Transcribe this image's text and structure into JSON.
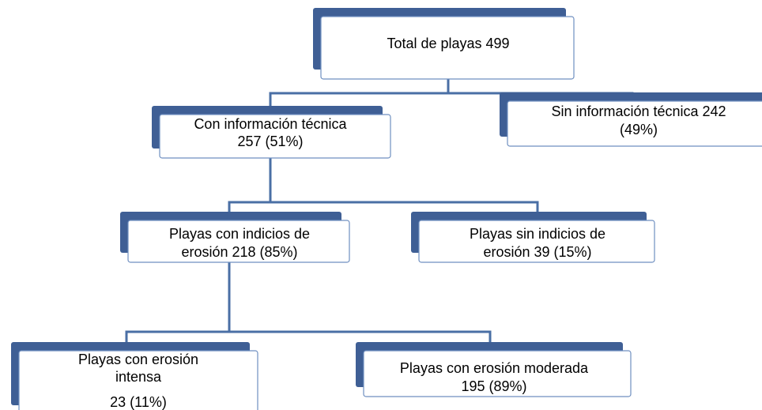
{
  "nodes": [
    {
      "lines": [
        "Total de playas  499"
      ]
    },
    {
      "lines": [
        "Con información técnica",
        "257 (51%)"
      ]
    },
    {
      "lines": [
        "Sin información técnica 242",
        "(49%)"
      ]
    },
    {
      "lines": [
        "Playas con indicios de",
        "erosión 218 (85%)"
      ]
    },
    {
      "lines": [
        "Playas sin indicios de",
        "erosión  39 (15%)"
      ]
    },
    {
      "lines": [
        "Playas con erosión",
        "intensa",
        "23 (11%)"
      ]
    },
    {
      "lines": [
        "Playas con erosión moderada",
        "195 (89%)"
      ]
    }
  ]
}
